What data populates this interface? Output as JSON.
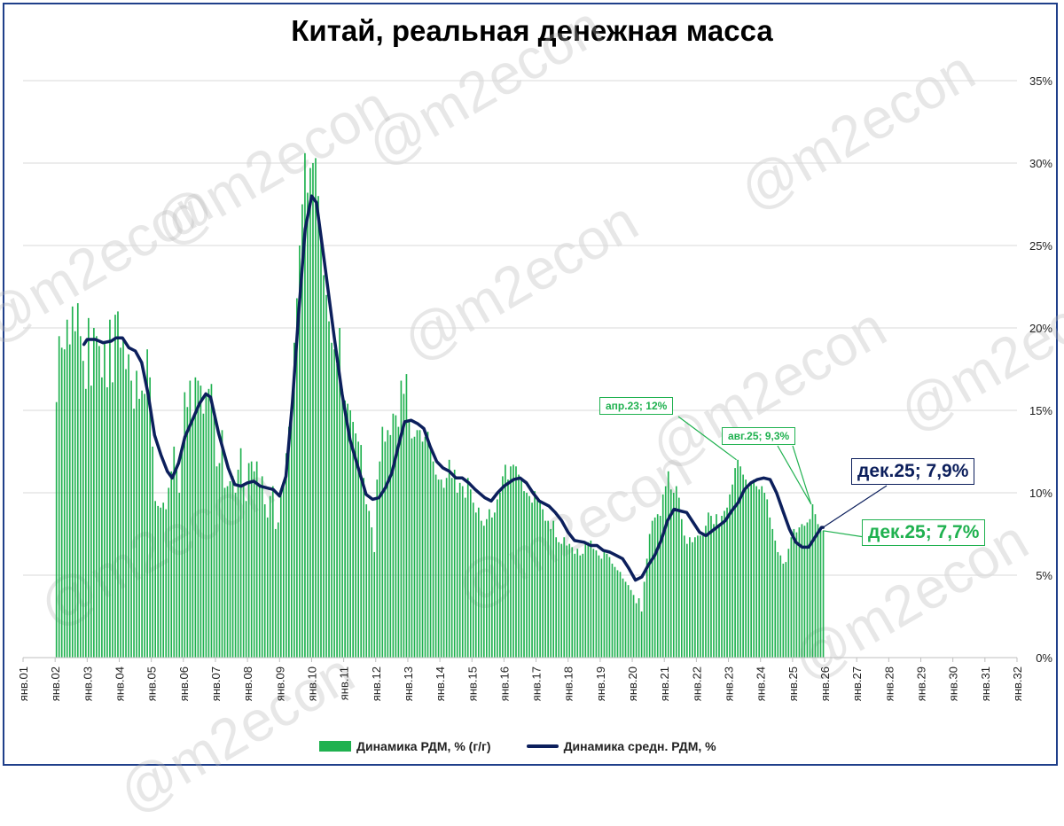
{
  "title": "Китай, реальная денежная масса",
  "watermark": "@m2econ",
  "colors": {
    "bars": "#1fb14f",
    "line": "#0c1f5c",
    "frame": "#1f3f8a",
    "grid": "#d9d9d9"
  },
  "legend": {
    "bars_label": "Динамика РДМ, % (г/г)",
    "line_label": "Динамика средн. РДМ, %"
  },
  "callouts": {
    "apr23": "апр.23; 12%",
    "aug25": "авг.25; 9,3%",
    "dec25_line": "дек.25; 7,9%",
    "dec25_bar": "дек.25; 7,7%"
  },
  "chart_data": {
    "type": "bar",
    "y_axis": {
      "min": 0,
      "max": 35,
      "step": 5,
      "position": "right",
      "tick_labels": [
        "0%",
        "5%",
        "10%",
        "15%",
        "20%",
        "25%",
        "30%",
        "35%"
      ]
    },
    "x_axis": {
      "tick_labels": [
        "янв.01",
        "янв.02",
        "янв.03",
        "янв.04",
        "янв.05",
        "янв.06",
        "янв.07",
        "янв.08",
        "янв.09",
        "янв.10",
        "янв.11",
        "янв.12",
        "янв.13",
        "янв.14",
        "янв.15",
        "янв.16",
        "янв.17",
        "янв.18",
        "янв.19",
        "янв.20",
        "янв.21",
        "янв.22",
        "янв.23",
        "янв.24",
        "янв.25",
        "янв.26",
        "янв.27",
        "янв.28",
        "янв.29",
        "янв.30",
        "янв.31",
        "янв.32"
      ],
      "start_year": 2001,
      "end_year": 2032
    },
    "grid": "horizontal",
    "legend_position": "bottom",
    "series": [
      {
        "name": "Динамика РДМ, % (г/г)",
        "type": "bar",
        "x_start": "янв.02",
        "frequency": "monthly",
        "yearly_values": {
          "2002": [
            15.5,
            19.5,
            18.8,
            18.7,
            20.5,
            19.0,
            21.3,
            19.8,
            21.5,
            19.5,
            18.0,
            16.3
          ],
          "2003": [
            20.6,
            16.5,
            20.0,
            19.5,
            18.9,
            17.0,
            19.2,
            16.4,
            20.5,
            16.7,
            20.8,
            21.0
          ],
          "2004": [
            18.8,
            19.4,
            17.5,
            18.4,
            16.8,
            15.1,
            17.4,
            15.7,
            16.2,
            16.0,
            18.7,
            17.0
          ],
          "2005": [
            12.8,
            9.5,
            9.2,
            9.1,
            9.4,
            9.0,
            10.3,
            11.3,
            12.8,
            11.6,
            10.0,
            12.5
          ],
          "2006": [
            16.1,
            15.2,
            16.8,
            14.5,
            17.0,
            16.8,
            16.5,
            14.8,
            16.0,
            16.3,
            16.6,
            15.1
          ],
          "2007": [
            11.6,
            11.8,
            13.8,
            10.3,
            10.4,
            10.7,
            11.0,
            10.0,
            11.4,
            12.7,
            10.5,
            9.5
          ],
          "2008": [
            11.8,
            11.9,
            11.3,
            11.9,
            10.5,
            11.0,
            9.3,
            8.5,
            9.8,
            10.4,
            7.8,
            8.2
          ],
          "2009": [
            10.2,
            10.6,
            12.4,
            14.0,
            15.4,
            19.1,
            21.8,
            25.0,
            27.5,
            30.6,
            28.2,
            29.7
          ],
          "2010": [
            30.0,
            30.3,
            28.0,
            25.5,
            23.2,
            22.0,
            20.4,
            19.1,
            18.7,
            17.8,
            20.0,
            16.3
          ],
          "2011": [
            15.6,
            15.4,
            15.0,
            14.3,
            13.6,
            13.1,
            12.9,
            10.9,
            9.3,
            8.9,
            7.9,
            6.4
          ],
          "2012": [
            10.8,
            11.9,
            14.0,
            13.1,
            13.8,
            13.5,
            14.8,
            14.7,
            14.0,
            16.8,
            16.0,
            17.2
          ],
          "2013": [
            14.3,
            13.3,
            13.4,
            13.8,
            13.8,
            13.1,
            13.4,
            13.7,
            12.7,
            11.9,
            11.1,
            10.8
          ],
          "2014": [
            10.8,
            10.3,
            10.9,
            12.0,
            10.9,
            11.4,
            10.0,
            10.6,
            10.4,
            9.7,
            10.9,
            10.2
          ],
          "2015": [
            9.4,
            8.8,
            9.1,
            8.3,
            8.0,
            8.4,
            9.0,
            8.5,
            8.8,
            9.6,
            10.0,
            11.0
          ],
          "2016": [
            11.7,
            10.8,
            11.6,
            11.7,
            11.6,
            11.1,
            10.9,
            10.1,
            10.0,
            9.8,
            9.4,
            10.1
          ],
          "2017": [
            9.7,
            9.4,
            9.0,
            8.3,
            8.3,
            7.8,
            8.3,
            7.3,
            7.0,
            6.9,
            7.3,
            6.8
          ],
          "2018": [
            6.9,
            6.7,
            6.3,
            6.6,
            6.2,
            6.3,
            7.0,
            7.0,
            7.1,
            6.6,
            6.5,
            6.2
          ],
          "2019": [
            6.0,
            6.4,
            6.3,
            6.1,
            5.7,
            5.5,
            5.3,
            5.2,
            4.8,
            4.6,
            4.4,
            4.1
          ],
          "2020": [
            3.8,
            3.3,
            3.6,
            2.8,
            4.6,
            6.0,
            7.5,
            8.3,
            8.5,
            8.7,
            8.6,
            9.9
          ],
          "2021": [
            10.4,
            11.3,
            10.2,
            10.0,
            10.4,
            9.7,
            8.4,
            7.4,
            6.9,
            7.3,
            7.0,
            7.3
          ],
          "2022": [
            7.4,
            7.4,
            7.4,
            8.0,
            8.8,
            8.6,
            8.1,
            8.7,
            8.1,
            8.6,
            8.9,
            9.1
          ],
          "2023": [
            9.9,
            10.5,
            11.5,
            12.0,
            11.6,
            11.1,
            10.8,
            10.3,
            10.6,
            10.8,
            10.4,
            10.2
          ],
          "2024": [
            10.4,
            10.0,
            9.6,
            8.5,
            7.8,
            7.1,
            6.4,
            6.2,
            5.7,
            5.8,
            6.6,
            7.3
          ],
          "2025": [
            7.8,
            7.6,
            7.9,
            8.1,
            8.0,
            8.2,
            8.4,
            9.3,
            8.7,
            8.1,
            7.9,
            7.7
          ]
        }
      },
      {
        "name": "Динамика средн. РДМ, %",
        "type": "line",
        "frequency": "year_fraction_points",
        "points": [
          [
            2002.9,
            19.0
          ],
          [
            2003.0,
            19.3
          ],
          [
            2003.25,
            19.3
          ],
          [
            2003.5,
            19.1
          ],
          [
            2003.75,
            19.2
          ],
          [
            2003.9,
            19.4
          ],
          [
            2004.1,
            19.4
          ],
          [
            2004.3,
            18.8
          ],
          [
            2004.5,
            18.6
          ],
          [
            2004.7,
            17.9
          ],
          [
            2004.9,
            16.0
          ],
          [
            2005.1,
            13.5
          ],
          [
            2005.3,
            12.3
          ],
          [
            2005.5,
            11.3
          ],
          [
            2005.65,
            10.9
          ],
          [
            2005.85,
            11.8
          ],
          [
            2006.05,
            13.4
          ],
          [
            2006.3,
            14.5
          ],
          [
            2006.5,
            15.4
          ],
          [
            2006.7,
            16.0
          ],
          [
            2006.85,
            15.8
          ],
          [
            2007.1,
            13.6
          ],
          [
            2007.4,
            11.5
          ],
          [
            2007.6,
            10.5
          ],
          [
            2007.8,
            10.4
          ],
          [
            2008.0,
            10.6
          ],
          [
            2008.2,
            10.7
          ],
          [
            2008.4,
            10.4
          ],
          [
            2008.6,
            10.3
          ],
          [
            2008.8,
            10.2
          ],
          [
            2009.0,
            9.8
          ],
          [
            2009.2,
            11.0
          ],
          [
            2009.4,
            15.5
          ],
          [
            2009.6,
            21.0
          ],
          [
            2009.8,
            26.0
          ],
          [
            2010.0,
            28.0
          ],
          [
            2010.15,
            27.6
          ],
          [
            2010.4,
            24.0
          ],
          [
            2010.7,
            19.5
          ],
          [
            2010.95,
            16.0
          ],
          [
            2011.2,
            13.2
          ],
          [
            2011.5,
            11.2
          ],
          [
            2011.7,
            9.9
          ],
          [
            2011.9,
            9.6
          ],
          [
            2012.1,
            9.7
          ],
          [
            2012.3,
            10.3
          ],
          [
            2012.5,
            11.2
          ],
          [
            2012.7,
            12.8
          ],
          [
            2012.9,
            14.3
          ],
          [
            2013.1,
            14.4
          ],
          [
            2013.3,
            14.2
          ],
          [
            2013.5,
            13.9
          ],
          [
            2013.7,
            12.8
          ],
          [
            2013.9,
            11.9
          ],
          [
            2014.1,
            11.5
          ],
          [
            2014.3,
            11.3
          ],
          [
            2014.5,
            10.9
          ],
          [
            2014.7,
            10.9
          ],
          [
            2014.9,
            10.6
          ],
          [
            2015.1,
            10.2
          ],
          [
            2015.4,
            9.7
          ],
          [
            2015.6,
            9.5
          ],
          [
            2015.8,
            10.0
          ],
          [
            2016.0,
            10.4
          ],
          [
            2016.3,
            10.8
          ],
          [
            2016.5,
            10.9
          ],
          [
            2016.7,
            10.6
          ],
          [
            2016.9,
            10.0
          ],
          [
            2017.1,
            9.5
          ],
          [
            2017.4,
            9.2
          ],
          [
            2017.6,
            8.8
          ],
          [
            2017.8,
            8.3
          ],
          [
            2018.0,
            7.6
          ],
          [
            2018.2,
            7.1
          ],
          [
            2018.5,
            7.0
          ],
          [
            2018.7,
            6.8
          ],
          [
            2018.9,
            6.8
          ],
          [
            2019.1,
            6.5
          ],
          [
            2019.3,
            6.4
          ],
          [
            2019.5,
            6.2
          ],
          [
            2019.7,
            6.0
          ],
          [
            2019.9,
            5.4
          ],
          [
            2020.1,
            4.7
          ],
          [
            2020.3,
            4.9
          ],
          [
            2020.5,
            5.6
          ],
          [
            2020.7,
            6.2
          ],
          [
            2020.9,
            7.1
          ],
          [
            2021.1,
            8.3
          ],
          [
            2021.3,
            9.0
          ],
          [
            2021.5,
            8.9
          ],
          [
            2021.7,
            8.8
          ],
          [
            2021.9,
            8.2
          ],
          [
            2022.1,
            7.6
          ],
          [
            2022.3,
            7.4
          ],
          [
            2022.5,
            7.7
          ],
          [
            2022.7,
            8.0
          ],
          [
            2022.9,
            8.3
          ],
          [
            2023.1,
            8.9
          ],
          [
            2023.3,
            9.4
          ],
          [
            2023.5,
            10.2
          ],
          [
            2023.7,
            10.6
          ],
          [
            2023.9,
            10.8
          ],
          [
            2024.1,
            10.9
          ],
          [
            2024.3,
            10.8
          ],
          [
            2024.5,
            10.0
          ],
          [
            2024.7,
            8.9
          ],
          [
            2024.9,
            7.8
          ],
          [
            2025.1,
            7.0
          ],
          [
            2025.3,
            6.7
          ],
          [
            2025.5,
            6.7
          ],
          [
            2025.7,
            7.3
          ],
          [
            2025.9,
            7.9
          ],
          [
            2025.95,
            7.9
          ]
        ]
      }
    ],
    "annotations": [
      {
        "label": "апр.23; 12%",
        "series": "bars",
        "x": 2023.25,
        "y": 12.0
      },
      {
        "label": "авг.25; 9,3%",
        "series": "bars",
        "x": 2025.58,
        "y": 9.3
      },
      {
        "label": "дек.25; 7,9%",
        "series": "line",
        "x": 2025.95,
        "y": 7.9
      },
      {
        "label": "дек.25; 7,7%",
        "series": "bars",
        "x": 2025.95,
        "y": 7.7
      }
    ]
  }
}
